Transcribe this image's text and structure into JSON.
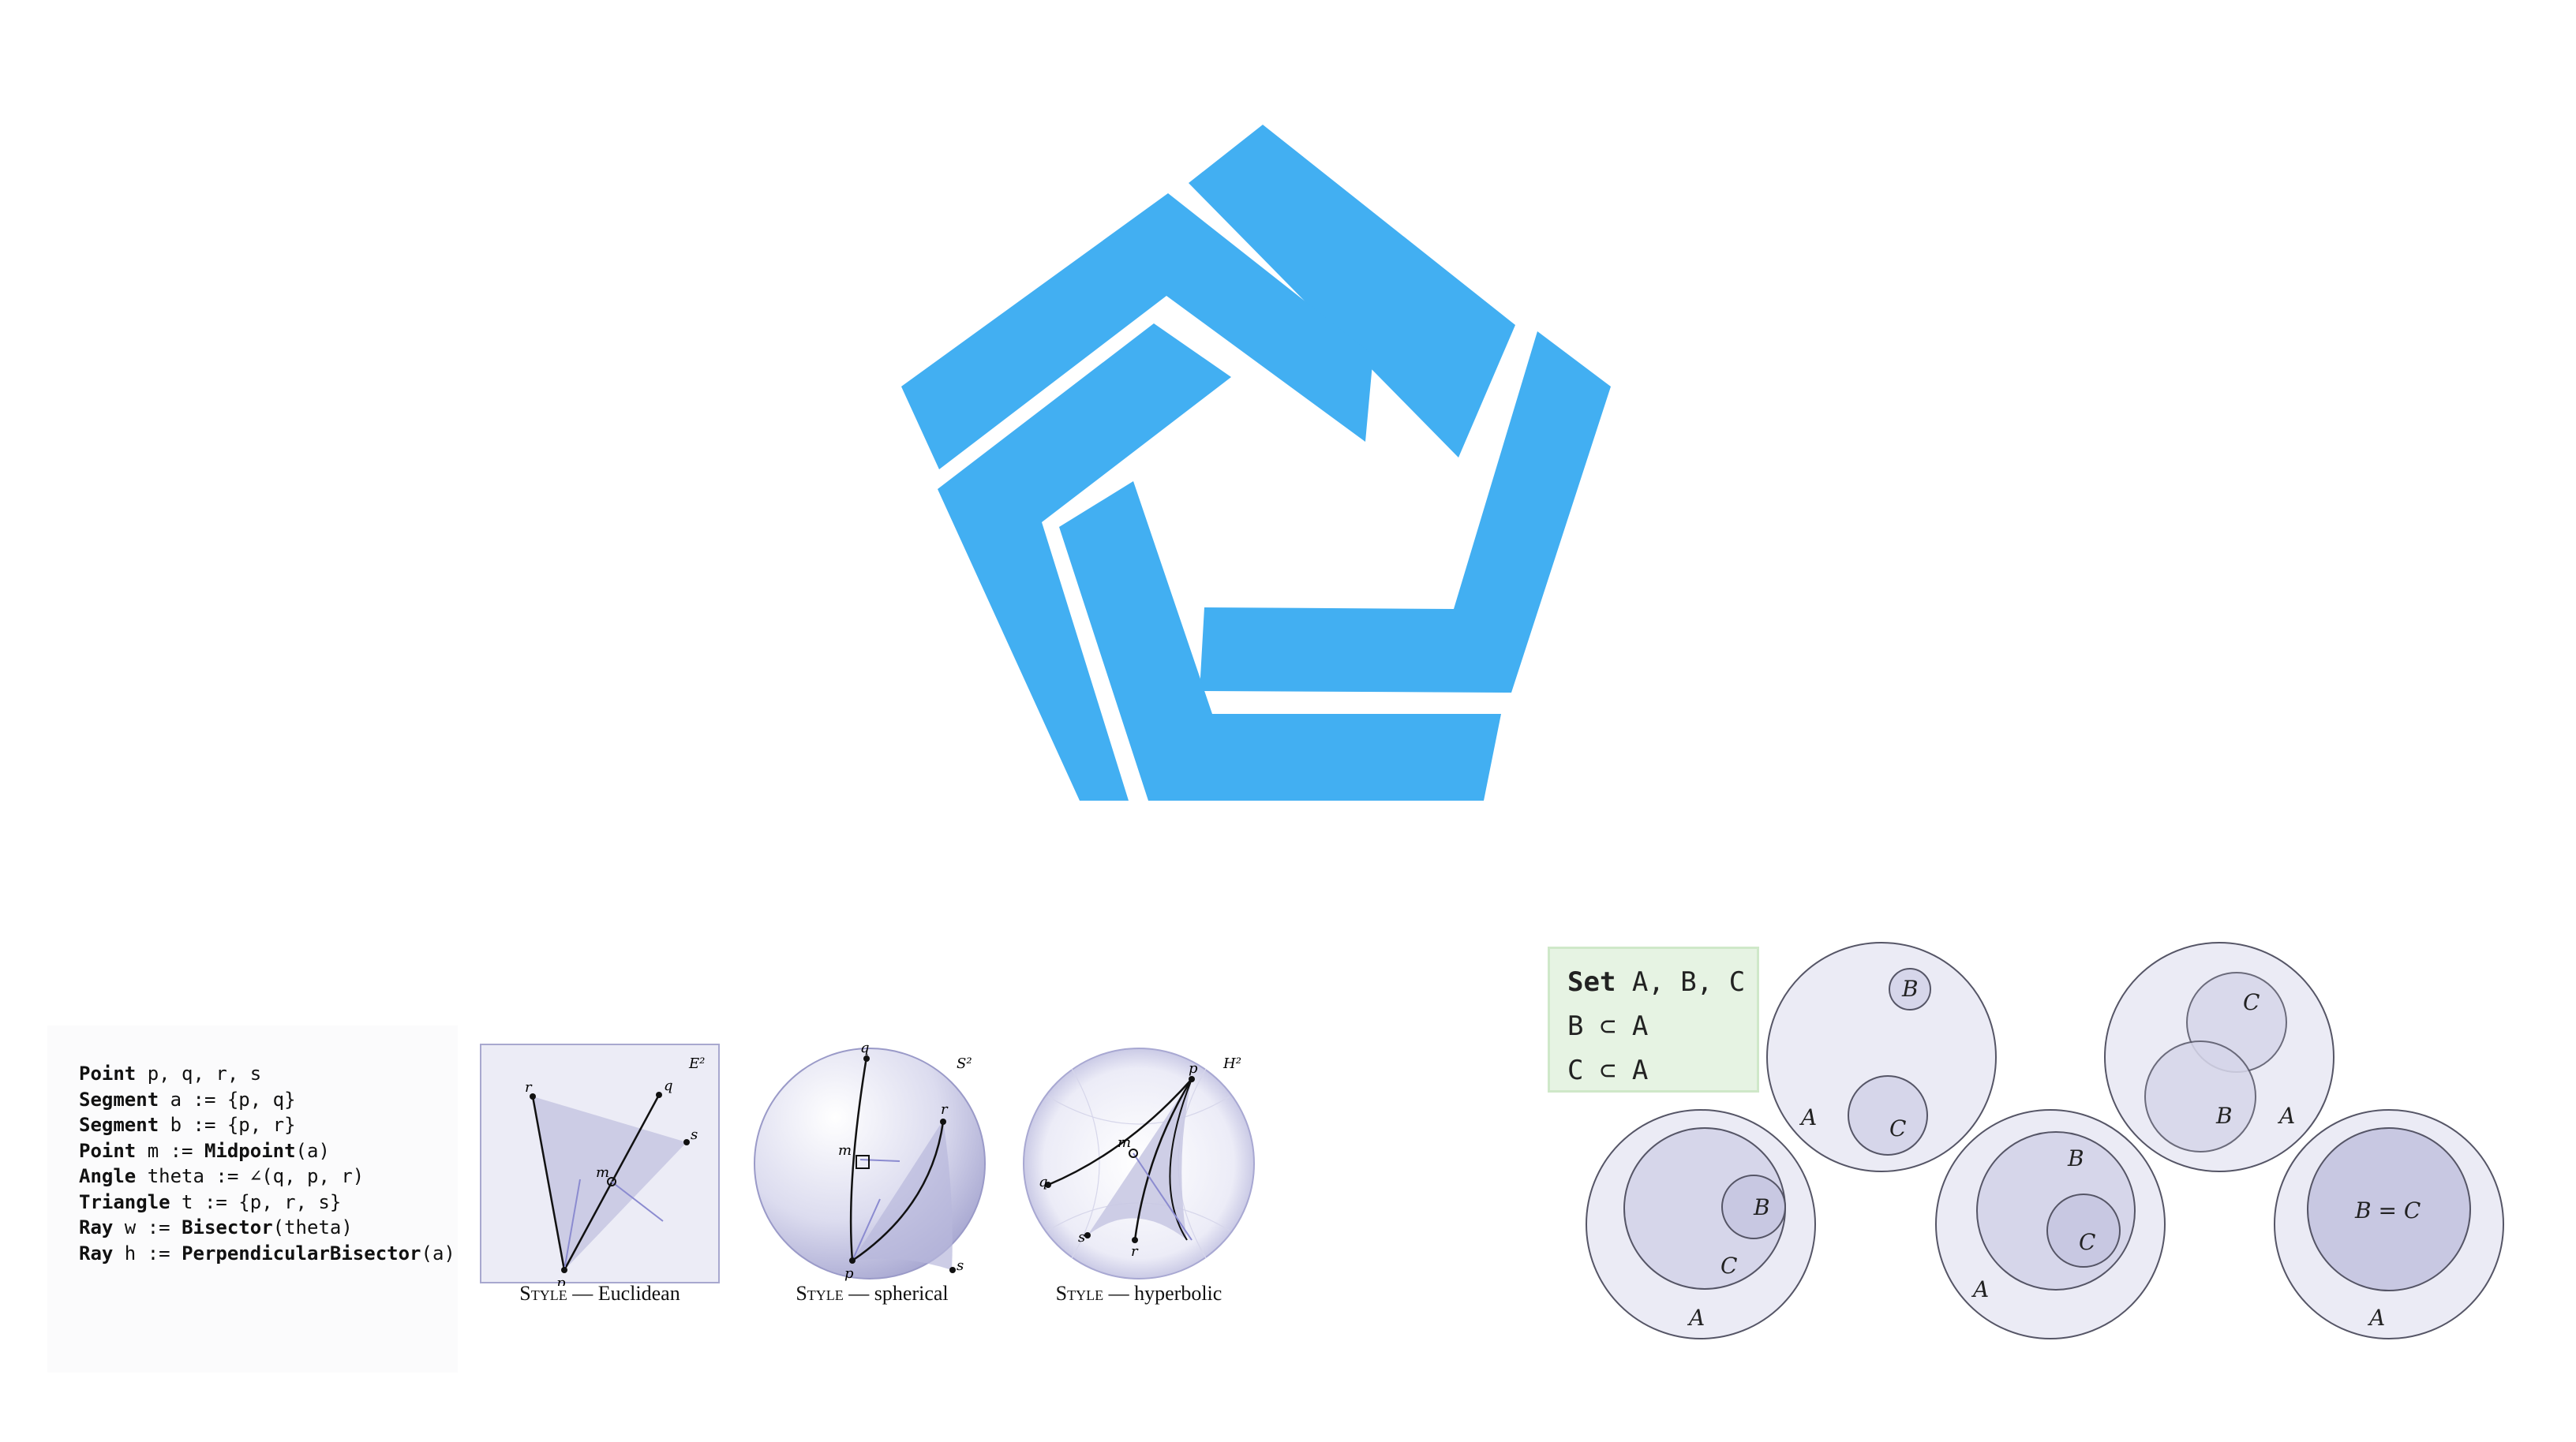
{
  "logo": {
    "color": "#42aff2"
  },
  "euclidean_program": {
    "lines": [
      {
        "kw": "Point",
        "rest": " p, q, r, s"
      },
      {
        "kw": "Segment",
        "rest": " a := {p, q}"
      },
      {
        "kw": "Segment",
        "rest": " b := {p, r}"
      },
      {
        "kw": "Point",
        "rest": " m := ",
        "fn": "Midpoint",
        "tail": "(a)"
      },
      {
        "kw": "Angle",
        "rest": " theta := ∠(q, p, r)"
      },
      {
        "kw": "Triangle",
        "rest": " t := {p, r, s}"
      },
      {
        "kw": "Ray",
        "rest": " w := ",
        "fn": "Bisector",
        "tail": "(theta)"
      },
      {
        "kw": "Ray",
        "rest": " h := ",
        "fn": "PerpendicularBisector",
        "tail": "(a)"
      }
    ]
  },
  "styles": {
    "euclidean": {
      "style_word": "Style",
      "dash": " — ",
      "name": "Euclidean",
      "space": "E²",
      "labels": {
        "p": "p",
        "q": "q",
        "r": "r",
        "s": "s",
        "m": "m"
      }
    },
    "spherical": {
      "style_word": "Style",
      "dash": " — ",
      "name": "spherical",
      "space": "S²",
      "labels": {
        "p": "p",
        "q": "q",
        "r": "r",
        "s": "s",
        "m": "m"
      }
    },
    "hyperbolic": {
      "style_word": "Style",
      "dash": " — ",
      "name": "hyperbolic",
      "space": "H²",
      "labels": {
        "p": "p",
        "q": "q",
        "r": "r",
        "s": "s",
        "m": "m"
      }
    }
  },
  "set_program": {
    "kw": "Set",
    "line1_rest": " A, B, C",
    "line2": "B ⊂ A",
    "line3": "C ⊂ A"
  },
  "venn": {
    "d1": {
      "A": "A",
      "B": "B",
      "C": "C"
    },
    "d2": {
      "A": "A",
      "B": "B",
      "C": "C"
    },
    "d3": {
      "A": "A",
      "B": "B",
      "C": "C"
    },
    "d4": {
      "A": "A",
      "B": "B",
      "C": "C"
    },
    "d5": {
      "A": "A",
      "BC": "B = C"
    }
  },
  "colors": {
    "outer_circle": "#ebebf5",
    "inner_circle": "#d6d6ea",
    "stroke": "#555566",
    "triangle_fill": "#c9c9e3"
  }
}
